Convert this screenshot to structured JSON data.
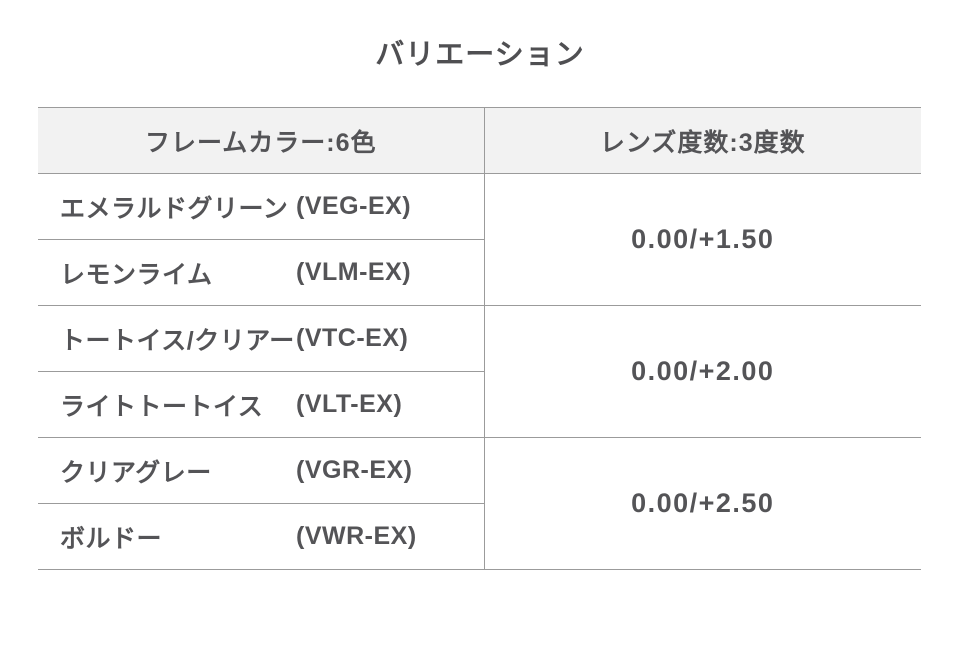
{
  "title": "バリエーション",
  "table": {
    "headers": {
      "frame_color": "フレームカラー:6色",
      "lens_power": "レンズ度数:3度数"
    },
    "frame_colors": [
      {
        "name": "エメラルドグリーン",
        "code": "(VEG-EX)"
      },
      {
        "name": "レモンライム",
        "code": "(VLM-EX)"
      },
      {
        "name": "トートイス/クリアー",
        "code": "(VTC-EX)"
      },
      {
        "name": "ライトトートイス",
        "code": "(VLT-EX)"
      },
      {
        "name": "クリアグレー",
        "code": "(VGR-EX)"
      },
      {
        "name": "ボルドー",
        "code": "(VWR-EX)"
      }
    ],
    "lens_powers": [
      "0.00/+1.50",
      "0.00/+2.00",
      "0.00/+2.50"
    ]
  },
  "colors": {
    "background": "#ffffff",
    "header_bg": "#f2f2f2",
    "border": "#9b9b9b",
    "text": "#545457"
  }
}
